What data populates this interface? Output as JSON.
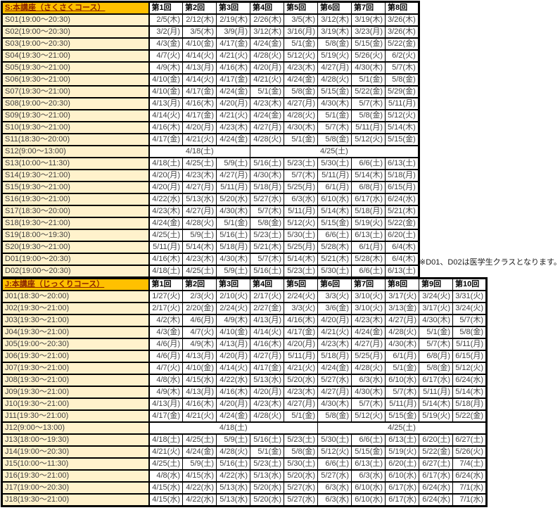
{
  "colors": {
    "header_bg": "#FFC000",
    "title_text": "#8B2500",
    "label_bg": "#FFF2CC",
    "cell_text": "#3F3F3F",
    "border": "#000000"
  },
  "note": {
    "text": "※D01、D02は医学生クラスとなります。"
  },
  "tables": [
    {
      "title": "S:本講座（さくさくコース）",
      "columns": [
        "第1回",
        "第2回",
        "第3回",
        "第4回",
        "第5回",
        "第6回",
        "第7回",
        "第8回"
      ],
      "rows": [
        {
          "label": "S01(19:00〜20:30)",
          "dates": [
            "2/5(木)",
            "2/12(木)",
            "2/19(木)",
            "2/26(木)",
            "3/5(木)",
            "3/12(木)",
            "3/19(木)",
            "3/26(木)"
          ]
        },
        {
          "label": "S02(19:00〜20:30)",
          "dates": [
            "3/2(月)",
            "3/5(木)",
            "3/9(月)",
            "3/12(木)",
            "3/16(月)",
            "3/19(木)",
            "3/23(月)",
            "3/26(木)"
          ]
        },
        {
          "label": "S03(19:00〜20:30)",
          "dates": [
            "4/3(金)",
            "4/10(金)",
            "4/17(金)",
            "4/24(金)",
            "5/1(金)",
            "5/8(金)",
            "5/15(金)",
            "5/22(金)"
          ]
        },
        {
          "label": "S04(19:30〜21:00)",
          "dates": [
            "4/7(火)",
            "4/14(火)",
            "4/21(火)",
            "4/28(火)",
            "5/12(火)",
            "5/19(火)",
            "5/26(火)",
            "6/2(火)"
          ]
        },
        {
          "label": "S05(19:30〜21:00)",
          "dates": [
            "4/9(木)",
            "4/13(月)",
            "4/16(木)",
            "4/20(月)",
            "4/23(木)",
            "4/27(月)",
            "4/30(木)",
            "5/7(木)"
          ]
        },
        {
          "label": "S06(19:30〜21:00)",
          "dates": [
            "4/10(金)",
            "4/14(火)",
            "4/17(金)",
            "4/21(火)",
            "4/24(金)",
            "4/28(火)",
            "5/1(金)",
            "5/8(金)"
          ]
        },
        {
          "label": "S07(19:30〜21:00)",
          "dates": [
            "4/10(金)",
            "4/17(金)",
            "4/24(金)",
            "5/1(金)",
            "5/8(金)",
            "5/15(金)",
            "5/22(金)",
            "5/29(金)"
          ]
        },
        {
          "label": "S08(19:00〜20:30)",
          "dates": [
            "4/13(月)",
            "4/16(木)",
            "4/20(月)",
            "4/23(木)",
            "4/27(月)",
            "4/30(木)",
            "5/7(木)",
            "5/11(月)"
          ]
        },
        {
          "label": "S09(19:30〜21:00)",
          "dates": [
            "4/14(火)",
            "4/17(金)",
            "4/21(火)",
            "4/24(金)",
            "4/28(火)",
            "5/1(金)",
            "5/8(金)",
            "5/12(火)"
          ]
        },
        {
          "label": "S10(19:30〜21:00)",
          "dates": [
            "4/16(木)",
            "4/20(月)",
            "4/23(木)",
            "4/27(月)",
            "4/30(木)",
            "5/7(木)",
            "5/11(月)",
            "5/14(木)"
          ]
        },
        {
          "label": "S11(18:30〜20:00)",
          "dates": [
            "4/17(金)",
            "4/21(火)",
            "4/24(金)",
            "4/28(火)",
            "5/1(金)",
            "5/8(金)",
            "5/12(火)",
            "5/15(金)"
          ]
        },
        {
          "label": "S12(9:00〜13:00)",
          "merged": [
            {
              "text": "4/18(土)",
              "span": 3
            },
            {
              "text": "4/25(土)",
              "span": 5
            }
          ]
        },
        {
          "label": "S13(10:00〜11:30)",
          "dates": [
            "4/18(土)",
            "4/25(土)",
            "5/9(土)",
            "5/16(土)",
            "5/23(土)",
            "5/30(土)",
            "6/6(土)",
            "6/13(土)"
          ]
        },
        {
          "label": "S14(19:30〜21:00)",
          "dates": [
            "4/20(月)",
            "4/23(木)",
            "4/27(月)",
            "4/30(木)",
            "5/7(木)",
            "5/11(月)",
            "5/14(木)",
            "5/18(月)"
          ]
        },
        {
          "label": "S15(19:30〜21:00)",
          "dates": [
            "4/20(月)",
            "4/27(月)",
            "5/11(月)",
            "5/18(月)",
            "5/25(月)",
            "6/1(月)",
            "6/8(月)",
            "6/15(月)"
          ]
        },
        {
          "label": "S16(19:30〜21:00)",
          "dates": [
            "4/22(水)",
            "5/13(水)",
            "5/20(水)",
            "5/27(水)",
            "6/3(水)",
            "6/10(水)",
            "6/17(水)",
            "6/24(水)"
          ]
        },
        {
          "label": "S17(18:30〜20:00)",
          "dates": [
            "4/23(木)",
            "4/27(月)",
            "4/30(木)",
            "5/7(木)",
            "5/11(月)",
            "5/14(木)",
            "5/18(月)",
            "5/21(木)"
          ]
        },
        {
          "label": "S18(19:30〜21:00)",
          "dates": [
            "4/24(金)",
            "4/28(火)",
            "5/1(金)",
            "5/8(金)",
            "5/12(火)",
            "5/15(金)",
            "5/19(火)",
            "5/22(金)"
          ]
        },
        {
          "label": "S19(18:00〜19:30)",
          "dates": [
            "4/25(土)",
            "5/9(土)",
            "5/16(土)",
            "5/23(土)",
            "5/30(土)",
            "6/6(土)",
            "6/13(土)",
            "6/20(土)"
          ]
        },
        {
          "label": "S20(19:30〜21:00)",
          "dates": [
            "5/11(月)",
            "5/14(木)",
            "5/18(月)",
            "5/21(木)",
            "5/25(月)",
            "5/28(木)",
            "6/1(月)",
            "6/4(木)"
          ]
        },
        {
          "label": "D01(19:00〜20:30)",
          "dates": [
            "4/16(木)",
            "4/23(木)",
            "4/30(木)",
            "5/7(木)",
            "5/14(木)",
            "5/21(木)",
            "5/28(木)",
            "6/4(木)"
          ]
        },
        {
          "label": "D02(19:00〜20:30)",
          "dates": [
            "4/18(土)",
            "4/25(土)",
            "5/9(土)",
            "5/16(土)",
            "5/23(土)",
            "5/30(土)",
            "6/6(土)",
            "6/13(土)"
          ]
        }
      ]
    },
    {
      "title": "J:本講座（じっくりコース）",
      "columns": [
        "第1回",
        "第2回",
        "第3回",
        "第4回",
        "第5回",
        "第6回",
        "第7回",
        "第8回",
        "第9回",
        "第10回"
      ],
      "rows": [
        {
          "label": "J01(18:30〜20:00)",
          "dates": [
            "1/27(火)",
            "2/3(火)",
            "2/10(火)",
            "2/17(火)",
            "2/24(火)",
            "3/3(火)",
            "3/10(火)",
            "3/17(火)",
            "3/24(火)",
            "3/31(火)"
          ]
        },
        {
          "label": "J02(19:30〜21:00)",
          "dates": [
            "2/17(火)",
            "2/20(金)",
            "2/24(火)",
            "2/27(金)",
            "3/3(火)",
            "3/6(金)",
            "3/10(火)",
            "3/13(金)",
            "3/17(火)",
            "3/24(火)"
          ]
        },
        {
          "label": "J03(19:30〜21:00)",
          "dates": [
            "4/2(木)",
            "4/6(月)",
            "4/9(木)",
            "4/13(月)",
            "4/16(木)",
            "4/20(月)",
            "4/23(木)",
            "4/27(月)",
            "4/30(木)",
            "5/7(木)"
          ]
        },
        {
          "label": "J04(19:30〜21:00)",
          "dates": [
            "4/3(金)",
            "4/7(火)",
            "4/10(金)",
            "4/14(火)",
            "4/17(金)",
            "4/21(火)",
            "4/24(金)",
            "4/28(火)",
            "5/1(金)",
            "5/8(金)"
          ]
        },
        {
          "label": "J05(19:00〜20:30)",
          "dates": [
            "4/6(月)",
            "4/9(木)",
            "4/13(月)",
            "4/16(木)",
            "4/20(月)",
            "4/23(木)",
            "4/27(月)",
            "4/30(木)",
            "5/7(木)",
            "5/11(月)"
          ]
        },
        {
          "label": "J06(19:30〜21:00)",
          "dates": [
            "4/6(月)",
            "4/13(月)",
            "4/20(月)",
            "4/27(月)",
            "5/11(月)",
            "5/18(月)",
            "5/25(月)",
            "6/1(月)",
            "6/8(月)",
            "6/15(月)"
          ]
        },
        {
          "label": "J07(19:30〜21:00)",
          "dates": [
            "4/7(火)",
            "4/10(金)",
            "4/14(火)",
            "4/17(金)",
            "4/21(火)",
            "4/24(金)",
            "4/28(火)",
            "5/1(金)",
            "5/8(金)",
            "5/12(火)"
          ]
        },
        {
          "label": "J08(19:30〜21:00)",
          "dates": [
            "4/8(水)",
            "4/15(水)",
            "4/22(水)",
            "5/13(水)",
            "5/20(水)",
            "5/27(水)",
            "6/3(水)",
            "6/10(水)",
            "6/17(水)",
            "6/24(水)"
          ]
        },
        {
          "label": "J09(19:30〜21:00)",
          "dates": [
            "4/9(木)",
            "4/13(月)",
            "4/16(木)",
            "4/20(月)",
            "4/23(木)",
            "4/27(月)",
            "4/30(木)",
            "5/7(木)",
            "5/11(月)",
            "5/14(木)"
          ]
        },
        {
          "label": "J10(19:30〜21:00)",
          "dates": [
            "4/13(月)",
            "4/16(木)",
            "4/20(月)",
            "4/23(木)",
            "4/27(月)",
            "4/30(木)",
            "5/7(木)",
            "5/11(月)",
            "5/14(木)",
            "5/18(月)"
          ]
        },
        {
          "label": "J11(19:30〜21:00)",
          "dates": [
            "4/17(金)",
            "4/21(火)",
            "4/24(金)",
            "4/28(火)",
            "5/1(金)",
            "5/8(金)",
            "5/12(火)",
            "5/15(金)",
            "5/19(火)",
            "5/22(金)"
          ]
        },
        {
          "label": "J12(9:00〜13:00)",
          "merged": [
            {
              "text": "4/18(土)",
              "span": 5
            },
            {
              "text": "4/25(土)",
              "span": 5
            }
          ]
        },
        {
          "label": "J13(18:00〜19:30)",
          "dates": [
            "4/18(土)",
            "4/25(土)",
            "5/9(土)",
            "5/16(土)",
            "5/23(土)",
            "5/30(土)",
            "6/6(土)",
            "6/13(土)",
            "6/20(土)",
            "6/27(土)"
          ]
        },
        {
          "label": "J14(19:00〜20:30)",
          "dates": [
            "4/21(火)",
            "4/24(金)",
            "4/28(火)",
            "5/1(金)",
            "5/8(金)",
            "5/12(火)",
            "5/15(金)",
            "5/19(火)",
            "5/22(金)",
            "5/26(火)"
          ]
        },
        {
          "label": "J15(10:00〜11:30)",
          "dates": [
            "4/25(土)",
            "5/9(土)",
            "5/16(土)",
            "5/23(土)",
            "5/30(土)",
            "6/6(土)",
            "6/13(土)",
            "6/20(土)",
            "6/27(土)",
            "7/4(土)"
          ]
        },
        {
          "label": "J16(19:30〜21:00)",
          "dates": [
            "4/8(水)",
            "4/15(水)",
            "4/22(水)",
            "5/13(水)",
            "5/20(水)",
            "5/27(水)",
            "6/3(水)",
            "6/10(水)",
            "6/17(水)",
            "6/24(水)"
          ]
        },
        {
          "label": "J17(19:00〜20:30)",
          "dates": [
            "4/15(水)",
            "4/22(水)",
            "5/13(水)",
            "5/20(水)",
            "5/27(水)",
            "6/3(水)",
            "6/10(水)",
            "6/17(水)",
            "6/24(水)",
            "7/1(水)"
          ]
        },
        {
          "label": "J18(19:30〜21:00)",
          "dates": [
            "4/15(水)",
            "4/22(水)",
            "5/13(水)",
            "5/20(水)",
            "5/27(水)",
            "6/3(水)",
            "6/10(水)",
            "6/17(水)",
            "6/24(水)",
            "7/1(水)"
          ]
        }
      ]
    }
  ]
}
